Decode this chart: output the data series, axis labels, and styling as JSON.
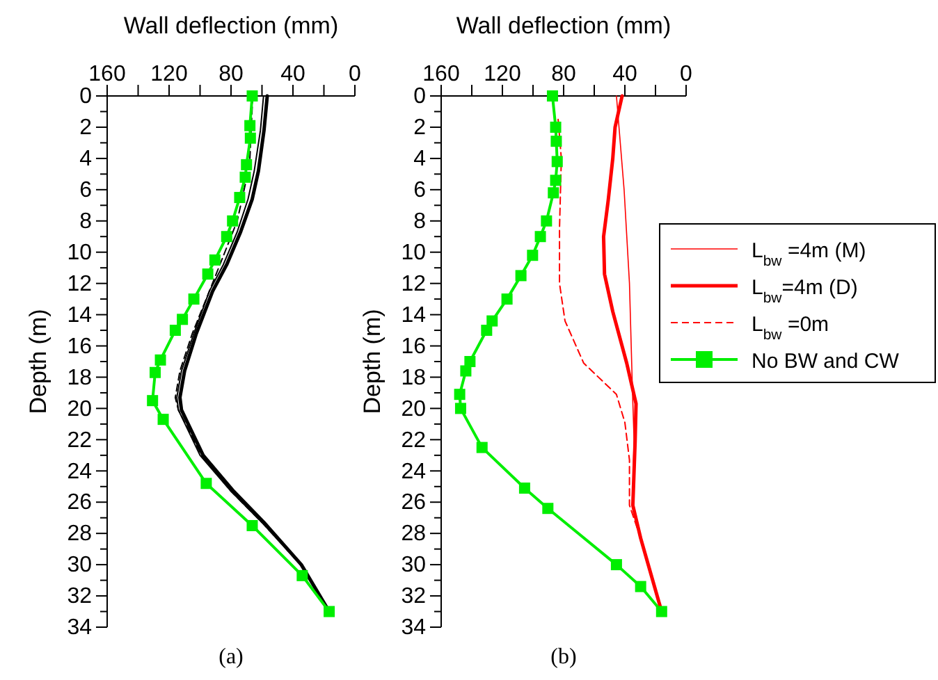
{
  "chart_data": [
    {
      "type": "line",
      "xlabel": "Wall deflection (mm)",
      "ylabel": "Depth (m)",
      "annotations": [
        "(a)"
      ],
      "xlim": [
        160,
        0
      ],
      "xticks": [
        160,
        {
          "value": 140,
          "label": null
        },
        120,
        {
          "value": 100,
          "label": null
        },
        80,
        {
          "value": 60,
          "label": null
        },
        40,
        {
          "value": 20,
          "label": null
        },
        0
      ],
      "ylim": [
        34,
        0
      ],
      "yticks": [
        0,
        {
          "value": 1,
          "label": null
        },
        2,
        {
          "value": 3,
          "label": null
        },
        4,
        {
          "value": 5,
          "label": null
        },
        6,
        {
          "value": 7,
          "label": null
        },
        8,
        {
          "value": 9,
          "label": null
        },
        10,
        {
          "value": 11,
          "label": null
        },
        12,
        {
          "value": 13,
          "label": null
        },
        14,
        {
          "value": 15,
          "label": null
        },
        16,
        {
          "value": 17,
          "label": null
        },
        18,
        {
          "value": 19,
          "label": null
        },
        20,
        {
          "value": 21,
          "label": null
        },
        22,
        {
          "value": 23,
          "label": null
        },
        24,
        {
          "value": 25,
          "label": null
        },
        26,
        {
          "value": 27,
          "label": null
        },
        28,
        {
          "value": 29,
          "label": null
        },
        30,
        {
          "value": 31,
          "label": null
        },
        32,
        {
          "value": 33,
          "label": null
        },
        34
      ],
      "grid": false,
      "legend": false,
      "series": [
        {
          "color": "#000000",
          "line_style": "solid",
          "marker": "none",
          "x": [
            56.6,
            58.7,
            62.3,
            66.3,
            73.8,
            82.8,
            91.9,
            102.4,
            110,
            113,
            112,
            98,
            78.3,
            58.7,
            34.6,
            16.6
          ],
          "values": [
            0,
            2.2,
            4.8,
            6.6,
            8.7,
            10.8,
            12.5,
            15.2,
            17.6,
            19.3,
            20.1,
            23,
            25.3,
            27.3,
            30,
            33
          ]
        },
        {
          "color": "#000000",
          "line_style": "dashed",
          "marker": "none",
          "x": [
            66,
            68,
            76,
            86,
            94,
            105,
            113,
            116,
            114,
            99,
            80,
            60,
            35,
            16.6
          ],
          "values": [
            0,
            4.4,
            8,
            10.5,
            12.5,
            15.2,
            17.6,
            19.3,
            20.1,
            23,
            25.3,
            27.3,
            30,
            33
          ]
        },
        {
          "color": "#000000",
          "line_style": "solid",
          "marker": "none",
          "x": [
            59,
            61,
            65,
            69,
            76,
            85,
            94,
            104,
            112,
            115,
            114,
            100,
            80,
            60,
            35,
            16.6
          ],
          "values": [
            0,
            2.2,
            4.8,
            6.6,
            8.7,
            10.8,
            12.5,
            15.2,
            17.6,
            19.3,
            20.1,
            23,
            25.3,
            27.3,
            30,
            33
          ]
        },
        {
          "color": "#00ee00",
          "line_style": "solid",
          "marker": "square",
          "x": [
            66.3,
            67.8,
            67.5,
            70,
            70.8,
            74.4,
            79,
            82.8,
            90.4,
            95,
            104,
            111.4,
            116,
            125.6,
            129,
            130.7,
            123.8,
            96,
            66.3,
            34,
            16.6
          ],
          "values": [
            0,
            1.9,
            2.7,
            4.4,
            5.2,
            6.5,
            8,
            9,
            10.5,
            11.4,
            13,
            14.3,
            15,
            16.9,
            17.7,
            19.5,
            20.7,
            24.8,
            27.5,
            30.7,
            33
          ]
        }
      ]
    },
    {
      "type": "line",
      "xlabel": "Wall deflection (mm)",
      "ylabel": "Depth (m)",
      "annotations": [
        "(b)"
      ],
      "xlim": [
        160,
        0
      ],
      "xticks": [
        160,
        {
          "value": 140,
          "label": null
        },
        120,
        {
          "value": 100,
          "label": null
        },
        80,
        {
          "value": 60,
          "label": null
        },
        40,
        {
          "value": 20,
          "label": null
        },
        0
      ],
      "ylim": [
        34,
        0
      ],
      "yticks": [
        0,
        {
          "value": 1,
          "label": null
        },
        2,
        {
          "value": 3,
          "label": null
        },
        4,
        {
          "value": 5,
          "label": null
        },
        6,
        {
          "value": 7,
          "label": null
        },
        8,
        {
          "value": 9,
          "label": null
        },
        10,
        {
          "value": 11,
          "label": null
        },
        12,
        {
          "value": 13,
          "label": null
        },
        14,
        {
          "value": 15,
          "label": null
        },
        16,
        {
          "value": 17,
          "label": null
        },
        18,
        {
          "value": 19,
          "label": null
        },
        20,
        {
          "value": 21,
          "label": null
        },
        22,
        {
          "value": 23,
          "label": null
        },
        24,
        {
          "value": 25,
          "label": null
        },
        26,
        {
          "value": 27,
          "label": null
        },
        28,
        {
          "value": 29,
          "label": null
        },
        30,
        {
          "value": 31,
          "label": null
        },
        32,
        {
          "value": 33,
          "label": null
        },
        34
      ],
      "grid": false,
      "legend": "right",
      "series": [
        {
          "name": "L$_{bw}$ =4m (M)",
          "color": "#ff0000",
          "line_style": "solid",
          "marker": "none",
          "x": [
            45.5,
            40.5,
            37,
            35,
            34,
            35,
            30,
            16
          ],
          "values": [
            0,
            6,
            12,
            19,
            22,
            26,
            28.3,
            33
          ]
        },
        {
          "name": "L$_{bw}$=4m (D)",
          "color": "#ff0000",
          "line_style": "solid",
          "marker": "none",
          "x": [
            41.8,
            46.4,
            47.9,
            50.9,
            53.9,
            53.3,
            47.9,
            38.8,
            32.7,
            33.3,
            34.8,
            29.7,
            16
          ],
          "values": [
            0,
            2,
            4,
            6.7,
            9,
            11.4,
            13.8,
            17.1,
            19.7,
            22.1,
            26.2,
            28.3,
            33
          ]
        },
        {
          "name": "L$_{bw}$ =0m",
          "color": "#ff0000",
          "line_style": "dashed",
          "marker": "none",
          "x": [
            83.6,
            81.5,
            82.7,
            82.7,
            79.1,
            66.9,
            45.5,
            40,
            37,
            37,
            29.7,
            16
          ],
          "values": [
            1.5,
            4,
            8.5,
            12,
            14.4,
            17.1,
            19.1,
            20.9,
            23.3,
            26.2,
            28.3,
            33
          ]
        },
        {
          "name": "No BW and CW",
          "color": "#00ee00",
          "line_style": "solid",
          "marker": "square",
          "x": [
            87.3,
            85.2,
            84.8,
            84.2,
            85.2,
            86.7,
            91.2,
            95.2,
            100.3,
            107.9,
            117,
            126.7,
            130.3,
            141.2,
            143.9,
            147.9,
            147.3,
            133.3,
            105.5,
            90.3,
            45.5,
            29.7,
            16
          ],
          "values": [
            0,
            2,
            2.9,
            4.2,
            5.4,
            6.2,
            8,
            9,
            10.2,
            11.5,
            13,
            14.4,
            15,
            17,
            17.6,
            19.1,
            20,
            22.5,
            25.1,
            26.4,
            30,
            31.4,
            33
          ]
        }
      ]
    }
  ]
}
